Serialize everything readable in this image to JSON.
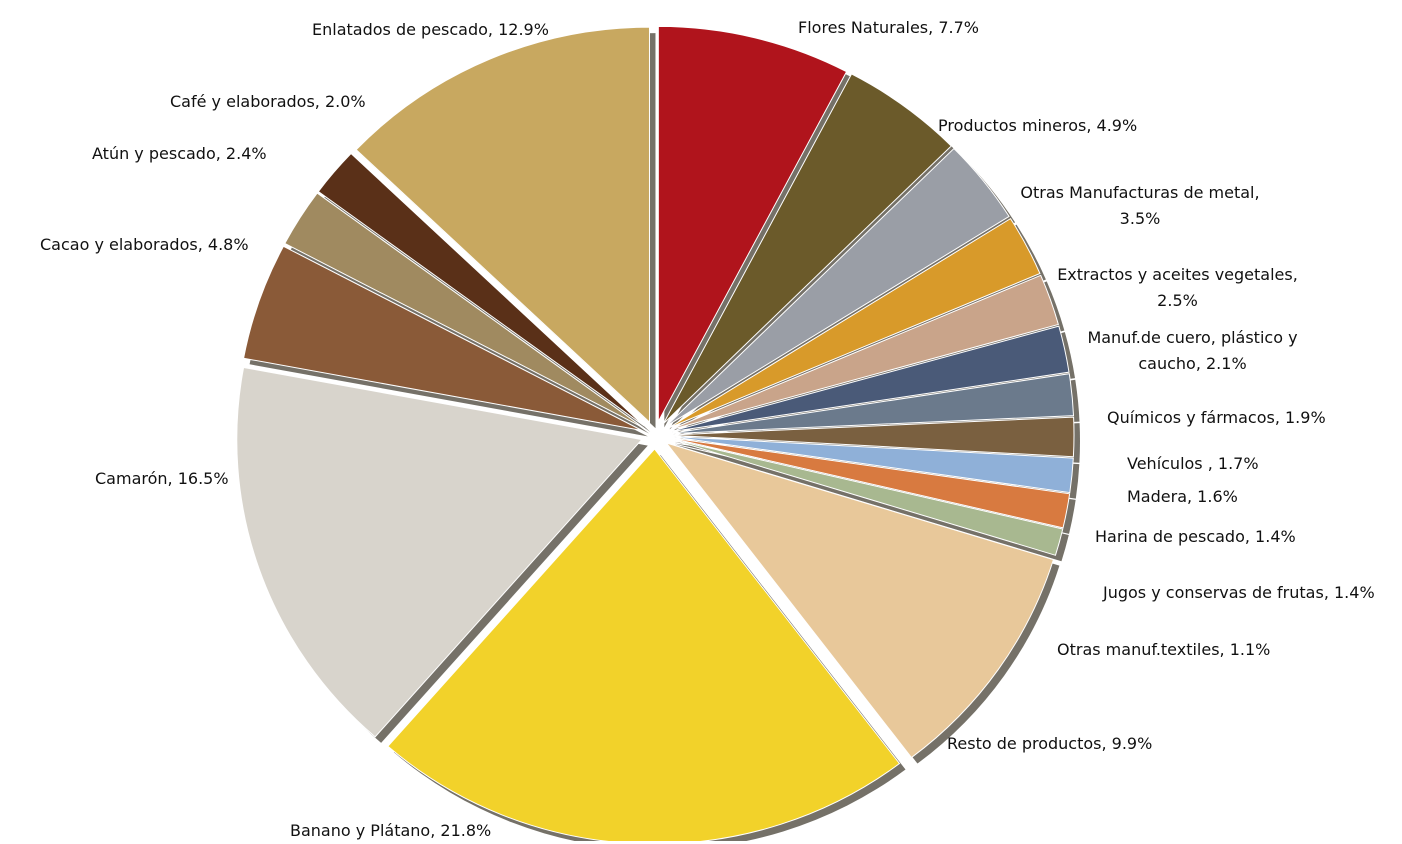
{
  "chart_data": {
    "type": "pie",
    "categories": [
      "Flores Naturales,",
      "Productos mineros,",
      "Otras Manufacturas de metal,",
      "Extractos y aceites vegetales,",
      "Manuf.de cuero, plástico y caucho,",
      "Químicos y fármacos,",
      "Vehículos ,",
      "Madera,",
      "Harina de pescado,",
      "Jugos y conservas de frutas,",
      "Otras manuf.textiles,",
      "Resto de productos,",
      "Banano y Plátano,",
      "Camarón,",
      "Cacao y elaborados,",
      "Atún y pescado,",
      "Café y elaborados,",
      "Enlatados de pescado,"
    ],
    "values": [
      7.7,
      4.9,
      3.5,
      2.5,
      2.1,
      1.9,
      1.7,
      1.6,
      1.4,
      1.4,
      1.1,
      9.9,
      21.8,
      16.5,
      4.8,
      2.4,
      2.0,
      12.9
    ],
    "value_labels": [
      "7.7%",
      "4.9%",
      "3.5%",
      "2.5%",
      "2.1%",
      "1.9%",
      "1.7%",
      "1.6%",
      "1.4%",
      "1.4%",
      "1.1%",
      "9.9%",
      "21.8%",
      "16.5%",
      "4.8%",
      "2.4%",
      "2.0%",
      "12.9%"
    ],
    "colors": [
      "#b0141c",
      "#6b5a2a",
      "#9a9ea6",
      "#d89a2a",
      "#c9a48a",
      "#4a5a78",
      "#6b7a8c",
      "#7a6040",
      "#8fb0d8",
      "#d87a40",
      "#a8b890",
      "#e8c89a",
      "#f2d22a",
      "#d8d4cc",
      "#8a5a38",
      "#a08a60",
      "#5a3018",
      "#c8a860"
    ]
  }
}
